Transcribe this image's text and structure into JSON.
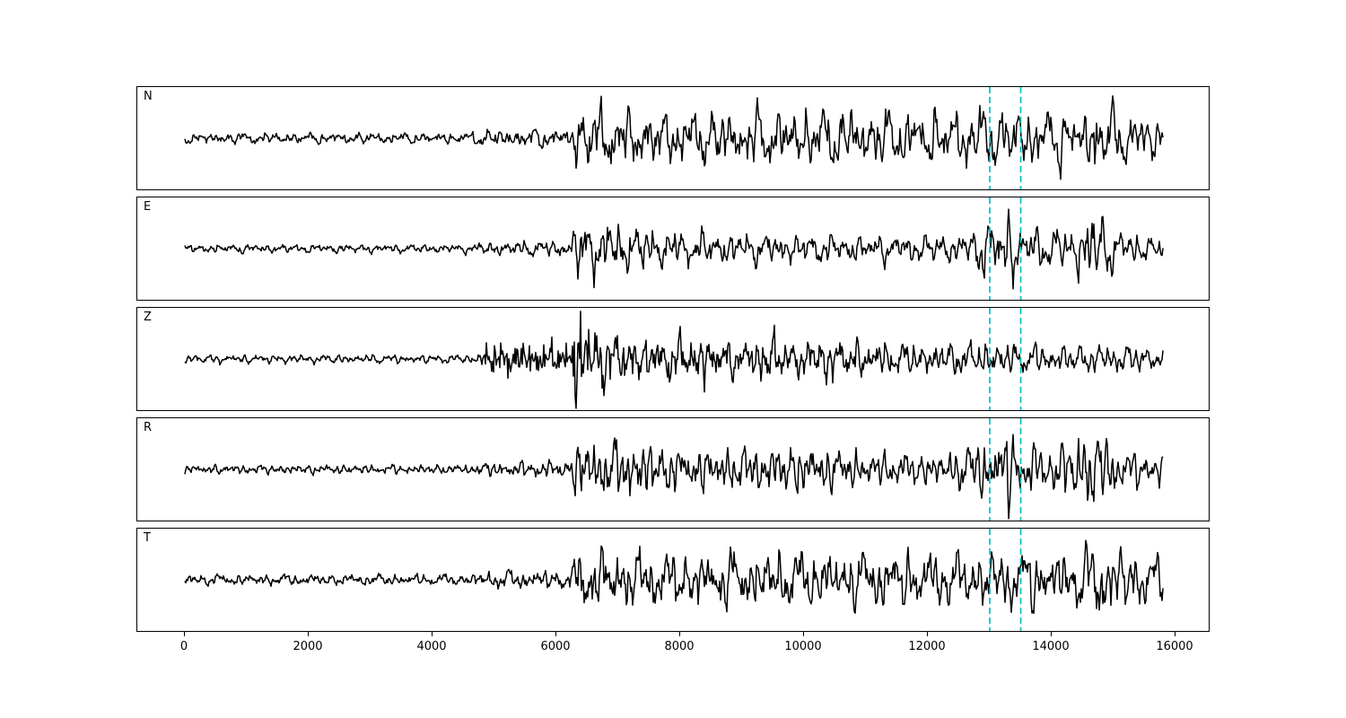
{
  "figure": {
    "background": "#ffffff",
    "trace_color": "#000000",
    "marker_color": "#00c0c8",
    "border_color": "#000000"
  },
  "chart_data": {
    "type": "line",
    "title": "",
    "xlabel": "",
    "ylabel": "",
    "xlim": [
      -768,
      16536
    ],
    "x_range": [
      0,
      15800
    ],
    "xticks": [
      0,
      2000,
      4000,
      6000,
      8000,
      10000,
      12000,
      14000,
      16000
    ],
    "xtick_labels": [
      "0",
      "2000",
      "4000",
      "6000",
      "8000",
      "10000",
      "12000",
      "14000",
      "16000"
    ],
    "grid": false,
    "legend": "none",
    "markers": [
      13000,
      13500
    ],
    "marker_style": "dashed",
    "panels": [
      {
        "label": "N",
        "seed": 11,
        "env": [
          [
            0,
            5
          ],
          [
            4600,
            5
          ],
          [
            4800,
            8
          ],
          [
            6250,
            9
          ],
          [
            6320,
            26
          ],
          [
            6600,
            30
          ],
          [
            7500,
            24
          ],
          [
            9000,
            26
          ],
          [
            10500,
            28
          ],
          [
            12000,
            26
          ],
          [
            13000,
            30
          ],
          [
            13600,
            28
          ],
          [
            14550,
            26
          ],
          [
            14700,
            52
          ],
          [
            14850,
            30
          ],
          [
            15300,
            26
          ],
          [
            15800,
            20
          ]
        ],
        "hf": [
          [
            0,
            0.35
          ],
          [
            4800,
            0.35
          ],
          [
            6300,
            0.35
          ],
          [
            15800,
            0.25
          ]
        ]
      },
      {
        "label": "E",
        "seed": 27,
        "env": [
          [
            0,
            4
          ],
          [
            4600,
            4
          ],
          [
            4800,
            6
          ],
          [
            6250,
            8
          ],
          [
            6320,
            30
          ],
          [
            6500,
            26
          ],
          [
            7200,
            22
          ],
          [
            8000,
            16
          ],
          [
            9500,
            14
          ],
          [
            11000,
            13
          ],
          [
            12600,
            14
          ],
          [
            13050,
            32
          ],
          [
            13350,
            34
          ],
          [
            13600,
            22
          ],
          [
            14200,
            18
          ],
          [
            14650,
            42
          ],
          [
            14800,
            30
          ],
          [
            15200,
            16
          ],
          [
            15800,
            12
          ]
        ],
        "hf": [
          [
            0,
            0.35
          ],
          [
            4800,
            0.35
          ],
          [
            6300,
            0.35
          ],
          [
            15800,
            0.25
          ]
        ]
      },
      {
        "label": "Z",
        "seed": 39,
        "env": [
          [
            0,
            4
          ],
          [
            4700,
            4
          ],
          [
            4850,
            10
          ],
          [
            6200,
            9
          ],
          [
            6400,
            46
          ],
          [
            6550,
            30
          ],
          [
            7000,
            22
          ],
          [
            7500,
            18
          ],
          [
            8400,
            22
          ],
          [
            9000,
            14
          ],
          [
            9500,
            26
          ],
          [
            9700,
            14
          ],
          [
            10300,
            20
          ],
          [
            11000,
            16
          ],
          [
            12000,
            14
          ],
          [
            13000,
            16
          ],
          [
            13500,
            14
          ],
          [
            14500,
            13
          ],
          [
            15000,
            14
          ],
          [
            15800,
            11
          ]
        ],
        "hf": [
          [
            0,
            0.3
          ],
          [
            4750,
            0.3
          ],
          [
            4900,
            1.0
          ],
          [
            6250,
            1.0
          ],
          [
            6450,
            0.45
          ],
          [
            15800,
            0.25
          ]
        ]
      },
      {
        "label": "R",
        "seed": 53,
        "env": [
          [
            0,
            4
          ],
          [
            4600,
            4
          ],
          [
            4800,
            6
          ],
          [
            6250,
            8
          ],
          [
            6320,
            30
          ],
          [
            6600,
            24
          ],
          [
            7400,
            26
          ],
          [
            8000,
            18
          ],
          [
            9000,
            20
          ],
          [
            10000,
            22
          ],
          [
            11000,
            16
          ],
          [
            12200,
            14
          ],
          [
            13050,
            30
          ],
          [
            13250,
            40
          ],
          [
            13500,
            26
          ],
          [
            14000,
            20
          ],
          [
            14600,
            40
          ],
          [
            14800,
            34
          ],
          [
            15200,
            18
          ],
          [
            15800,
            14
          ]
        ],
        "hf": [
          [
            0,
            0.35
          ],
          [
            4800,
            0.35
          ],
          [
            6300,
            0.35
          ],
          [
            15800,
            0.25
          ]
        ]
      },
      {
        "label": "T",
        "seed": 71,
        "env": [
          [
            0,
            5
          ],
          [
            4600,
            5
          ],
          [
            4800,
            8
          ],
          [
            6250,
            9
          ],
          [
            6350,
            32
          ],
          [
            6600,
            28
          ],
          [
            7500,
            26
          ],
          [
            8500,
            24
          ],
          [
            9500,
            28
          ],
          [
            10500,
            26
          ],
          [
            11500,
            28
          ],
          [
            12500,
            26
          ],
          [
            13200,
            28
          ],
          [
            14000,
            30
          ],
          [
            14600,
            28
          ],
          [
            14750,
            52
          ],
          [
            14900,
            34
          ],
          [
            15300,
            30
          ],
          [
            15800,
            22
          ]
        ],
        "hf": [
          [
            0,
            0.35
          ],
          [
            4800,
            0.35
          ],
          [
            6300,
            0.35
          ],
          [
            15800,
            0.25
          ]
        ]
      }
    ]
  }
}
